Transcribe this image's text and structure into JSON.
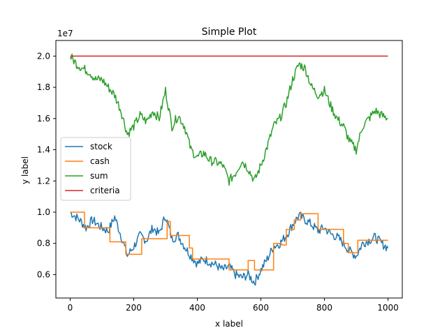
{
  "chart_data": {
    "type": "line",
    "title": "Simple Plot",
    "xlabel": "x label",
    "ylabel": "y label",
    "y_offset_label": "1e7",
    "xlim": [
      -45,
      1045
    ],
    "ylim": [
      0.45,
      2.1
    ],
    "xticks": [
      0,
      200,
      400,
      600,
      800,
      1000
    ],
    "xtick_labels": [
      "0",
      "200",
      "400",
      "600",
      "800",
      "1000"
    ],
    "yticks": [
      0.6,
      0.8,
      1.0,
      1.2,
      1.4,
      1.6,
      1.8,
      2.0
    ],
    "ytick_labels": [
      "0.6",
      "0.8",
      "1.0",
      "1.2",
      "1.4",
      "1.6",
      "1.8",
      "2.0"
    ],
    "grid": false,
    "legend_position": "center-left",
    "series": [
      {
        "name": "stock",
        "color": "#1f77b4",
        "style": "noisy",
        "x": [
          0,
          30,
          50,
          70,
          100,
          120,
          140,
          160,
          180,
          200,
          220,
          240,
          260,
          280,
          300,
          320,
          340,
          360,
          380,
          400,
          420,
          440,
          460,
          480,
          500,
          520,
          540,
          560,
          580,
          600,
          620,
          640,
          660,
          680,
          700,
          720,
          740,
          760,
          780,
          800,
          820,
          840,
          860,
          880,
          900,
          920,
          940,
          960,
          980,
          1000
        ],
        "y": [
          1.0,
          0.95,
          0.9,
          0.95,
          0.9,
          0.88,
          0.97,
          0.85,
          0.72,
          0.78,
          0.85,
          0.82,
          0.9,
          0.86,
          0.98,
          0.83,
          0.85,
          0.78,
          0.72,
          0.67,
          0.7,
          0.68,
          0.66,
          0.63,
          0.65,
          0.6,
          0.58,
          0.6,
          0.55,
          0.63,
          0.7,
          0.78,
          0.8,
          0.85,
          0.92,
          0.98,
          0.95,
          0.92,
          0.88,
          0.9,
          0.86,
          0.84,
          0.8,
          0.75,
          0.72,
          0.8,
          0.82,
          0.84,
          0.8,
          0.77
        ]
      },
      {
        "name": "cash",
        "color": "#ff7f0e",
        "style": "step",
        "x": [
          0,
          45,
          45,
          125,
          125,
          175,
          175,
          225,
          225,
          305,
          305,
          315,
          315,
          375,
          375,
          385,
          385,
          500,
          500,
          560,
          560,
          580,
          580,
          640,
          640,
          665,
          665,
          680,
          680,
          705,
          705,
          725,
          725,
          780,
          780,
          860,
          860,
          875,
          875,
          905,
          905,
          1000
        ],
        "y": [
          1.0,
          1.0,
          0.9,
          0.9,
          0.81,
          0.81,
          0.73,
          0.73,
          0.83,
          0.83,
          0.94,
          0.94,
          0.85,
          0.85,
          0.77,
          0.77,
          0.7,
          0.7,
          0.63,
          0.63,
          0.69,
          0.69,
          0.63,
          0.63,
          0.8,
          0.8,
          0.79,
          0.79,
          0.89,
          0.89,
          0.95,
          0.95,
          0.99,
          0.99,
          0.89,
          0.89,
          0.8,
          0.8,
          0.74,
          0.74,
          0.82,
          0.82
        ]
      },
      {
        "name": "sum",
        "color": "#2ca02c",
        "style": "noisy",
        "x": [
          0,
          20,
          40,
          60,
          80,
          100,
          120,
          140,
          160,
          180,
          200,
          220,
          240,
          260,
          280,
          300,
          320,
          340,
          360,
          380,
          400,
          420,
          440,
          460,
          480,
          500,
          520,
          540,
          560,
          580,
          600,
          620,
          640,
          660,
          680,
          700,
          720,
          740,
          760,
          780,
          800,
          820,
          840,
          860,
          880,
          900,
          920,
          940,
          960,
          980,
          1000
        ],
        "y": [
          2.0,
          1.95,
          1.92,
          1.9,
          1.85,
          1.85,
          1.8,
          1.75,
          1.65,
          1.5,
          1.55,
          1.62,
          1.58,
          1.65,
          1.6,
          1.78,
          1.55,
          1.62,
          1.55,
          1.4,
          1.35,
          1.38,
          1.33,
          1.32,
          1.3,
          1.2,
          1.25,
          1.33,
          1.28,
          1.2,
          1.3,
          1.42,
          1.55,
          1.6,
          1.7,
          1.85,
          1.95,
          1.92,
          1.8,
          1.75,
          1.78,
          1.68,
          1.6,
          1.55,
          1.45,
          1.4,
          1.55,
          1.6,
          1.65,
          1.62,
          1.6
        ]
      },
      {
        "name": "criteria",
        "color": "#d62728",
        "style": "flat",
        "x": [
          0,
          1000
        ],
        "y": [
          2.0,
          2.0
        ]
      }
    ]
  }
}
